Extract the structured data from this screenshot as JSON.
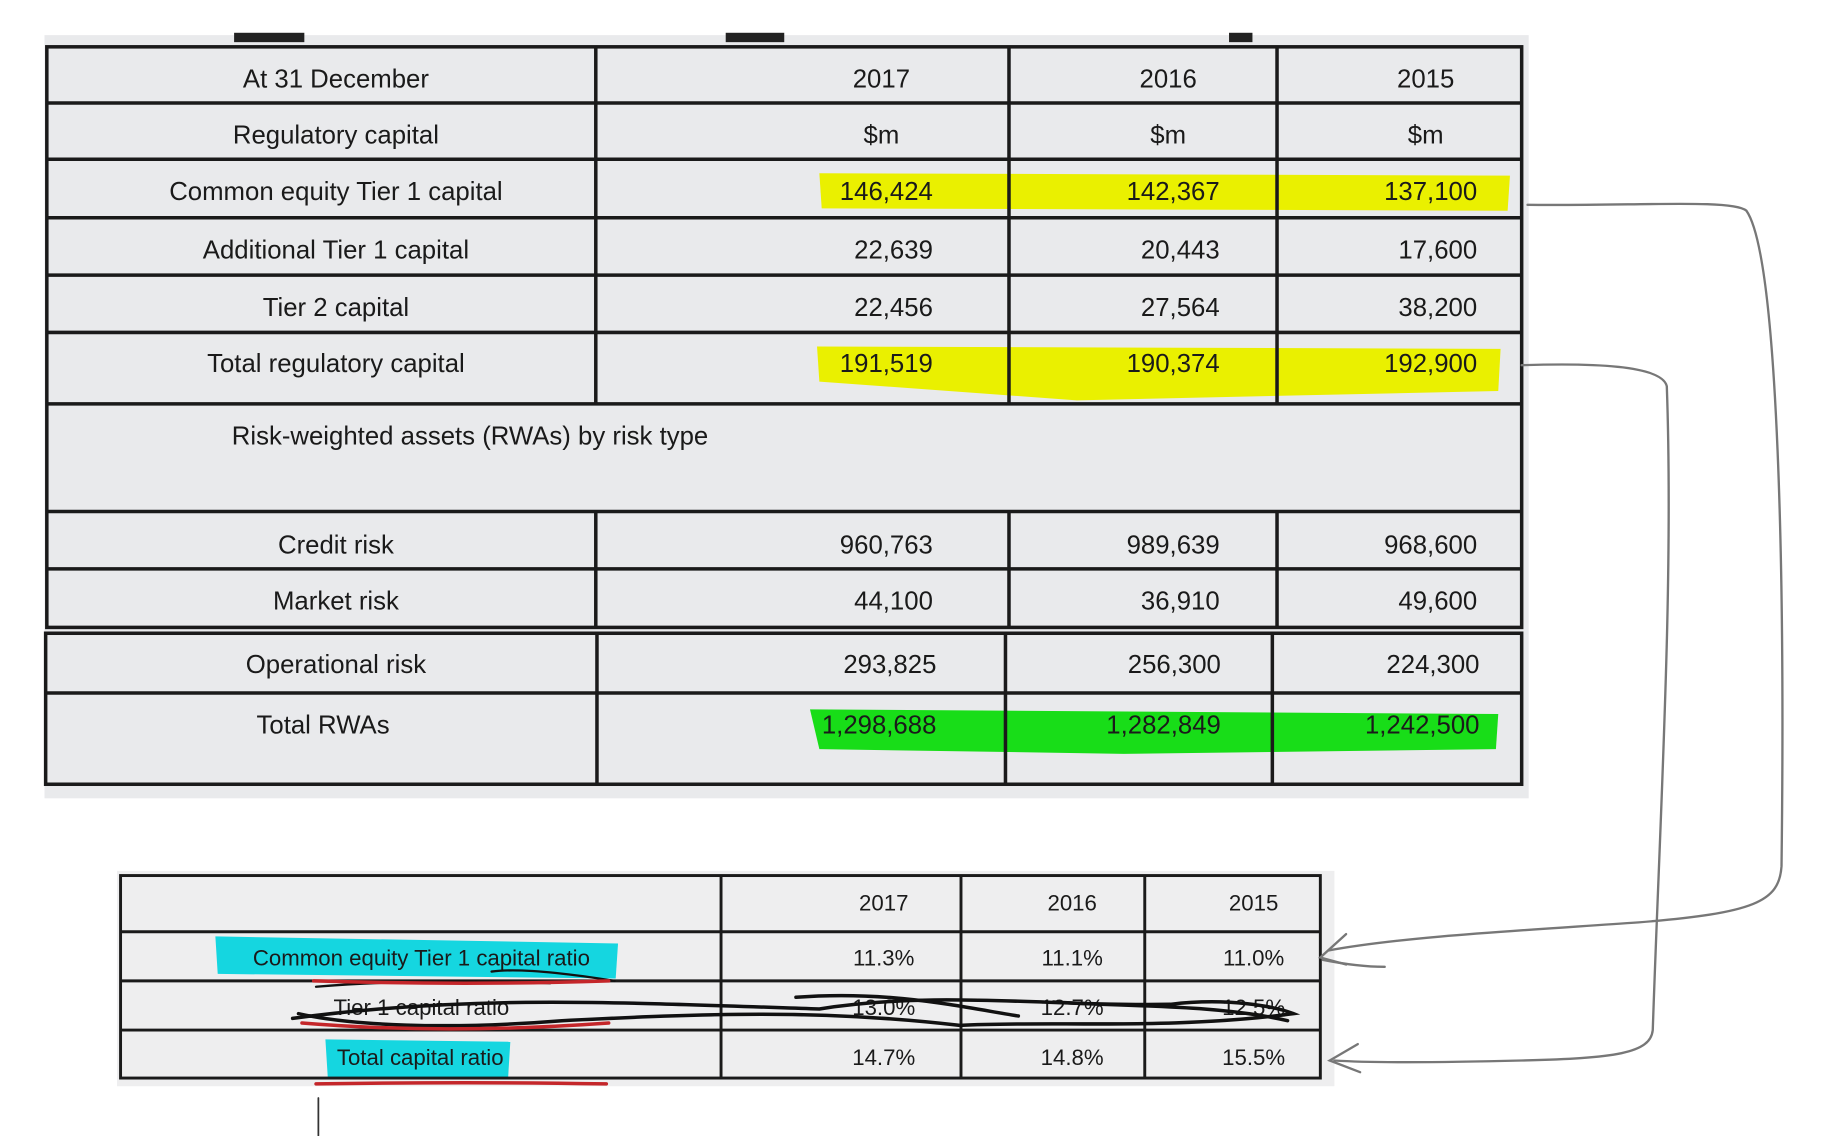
{
  "table1": {
    "header": [
      "At 31 December",
      "2017",
      "2016",
      "2015"
    ],
    "rows": [
      [
        "Regulatory capital",
        "$m",
        "$m",
        "$m"
      ],
      [
        "Common equity Tier 1 capital",
        "146,424",
        "142,367",
        "137,100"
      ],
      [
        "Additional Tier 1 capital",
        "22,639",
        "20,443",
        "17,600"
      ],
      [
        "Tier 2 capital",
        "22,456",
        "27,564",
        "38,200"
      ],
      [
        "Total regulatory capital",
        "191,519",
        "190,374",
        "192,900"
      ]
    ],
    "section": "Risk-weighted assets (RWAs) by risk  type",
    "rwa_rows": [
      [
        "Credit risk",
        "960,763",
        "989,639",
        "968,600"
      ],
      [
        "Market risk",
        "44,100",
        "36,910",
        "49,600"
      ],
      [
        "Operational risk",
        "293,825",
        "256,300",
        "224,300"
      ],
      [
        "Total RWAs",
        "1,298,688",
        "1,282,849",
        "1,242,500"
      ]
    ]
  },
  "table2": {
    "header": [
      "2017",
      "2016",
      "2015"
    ],
    "rows": [
      [
        "Common equity Tier 1 capital ratio",
        "11.3%",
        "11.1%",
        "11.0%"
      ],
      [
        "Tier 1 capital ratio",
        "13.0%",
        "12.7%",
        "12.5%"
      ],
      [
        "Total capital ratio",
        "14.7%",
        "14.8%",
        "15.5%"
      ]
    ]
  }
}
